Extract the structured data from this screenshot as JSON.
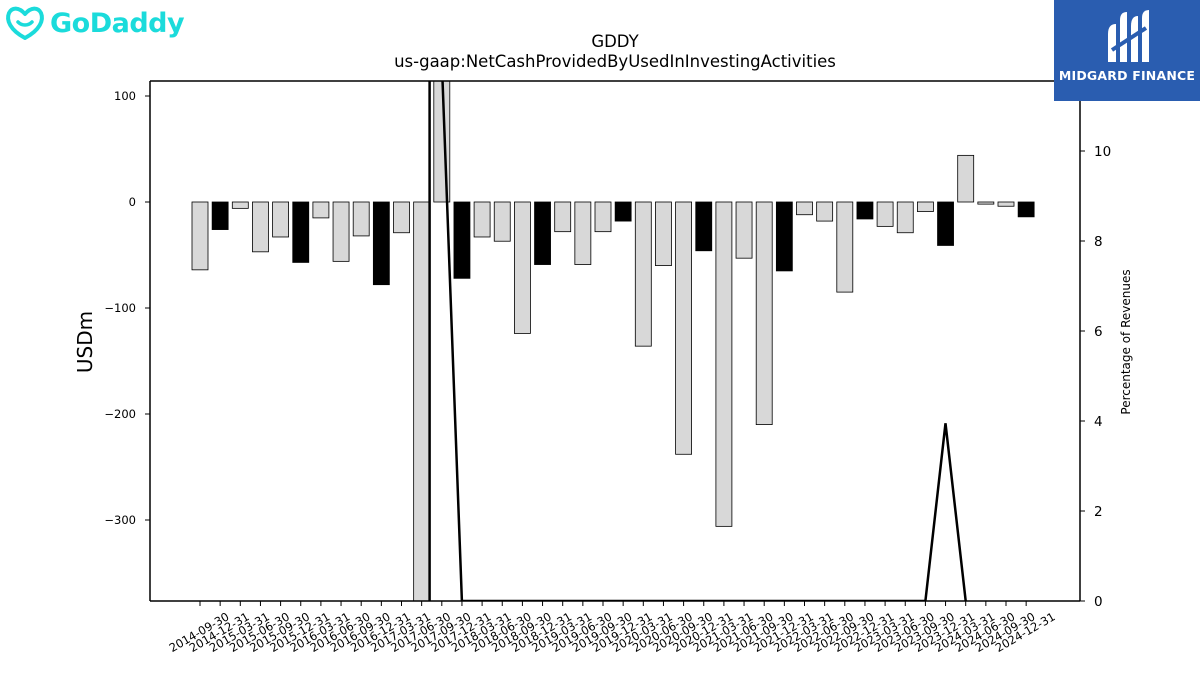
{
  "branding": {
    "left_logo_text": "GoDaddy",
    "left_logo_color": "#1bdbdb",
    "right_logo_text": "MIDGARD FINANCE",
    "right_logo_bg": "#2a5db0"
  },
  "chart_data": {
    "type": "bar",
    "title": "GDDY",
    "subtitle": "us-gaap:NetCashProvidedByUsedInInvestingActivities",
    "ylabel": "USDm",
    "y2label": "Percentage of Revenues",
    "ylim": [
      -375,
      113
    ],
    "y2lim": [
      0,
      11.5
    ],
    "yticks": [
      100,
      0,
      -100,
      -200,
      -300
    ],
    "yticklabels": [
      "100",
      "0",
      "−100",
      "−200",
      "−300"
    ],
    "y2ticks": [
      0,
      2,
      4,
      6,
      8,
      10
    ],
    "categories": [
      "2014-09-30",
      "2014-12-31",
      "2015-03-31",
      "2015-06-30",
      "2015-09-30",
      "2015-12-31",
      "2016-03-31",
      "2016-06-30",
      "2016-09-30",
      "2016-12-31",
      "2017-03-31",
      "2017-06-30",
      "2017-09-30",
      "2017-12-31",
      "2018-03-31",
      "2018-06-30",
      "2018-09-30",
      "2018-12-31",
      "2019-03-31",
      "2019-06-30",
      "2019-09-30",
      "2019-12-31",
      "2020-03-31",
      "2020-06-30",
      "2020-09-30",
      "2020-12-31",
      "2021-03-31",
      "2021-06-30",
      "2021-09-30",
      "2021-12-31",
      "2022-03-31",
      "2022-06-30",
      "2022-09-30",
      "2022-12-31",
      "2023-03-31",
      "2023-06-30",
      "2023-09-30",
      "2023-12-31",
      "2024-03-31",
      "2024-06-30",
      "2024-09-30",
      "2024-12-31"
    ],
    "values": [
      -64,
      -26,
      -6,
      -47,
      -33,
      -57,
      -15,
      -56,
      -32,
      -78,
      -29,
      -380,
      140,
      -72,
      -33,
      -37,
      -124,
      -59,
      -28,
      -59,
      -28,
      -18,
      -136,
      -60,
      -238,
      -46,
      -306,
      -53,
      -210,
      -65,
      -12,
      -18,
      -85,
      -16,
      -23,
      -29,
      -9,
      -41,
      44,
      -2,
      -4,
      -14
    ],
    "bar_colors": [
      "#d8d8d8",
      "#000000",
      "#d8d8d8",
      "#d8d8d8",
      "#d8d8d8",
      "#000000",
      "#d8d8d8",
      "#d8d8d8",
      "#d8d8d8",
      "#000000",
      "#d8d8d8",
      "#d8d8d8",
      "#d8d8d8",
      "#000000",
      "#d8d8d8",
      "#d8d8d8",
      "#d8d8d8",
      "#000000",
      "#d8d8d8",
      "#d8d8d8",
      "#d8d8d8",
      "#000000",
      "#d8d8d8",
      "#d8d8d8",
      "#d8d8d8",
      "#000000",
      "#d8d8d8",
      "#d8d8d8",
      "#d8d8d8",
      "#000000",
      "#d8d8d8",
      "#d8d8d8",
      "#d8d8d8",
      "#000000",
      "#d8d8d8",
      "#d8d8d8",
      "#d8d8d8",
      "#000000",
      "#d8d8d8",
      "#d8d8d8",
      "#d8d8d8",
      "#000000"
    ],
    "series": [
      {
        "axis": "right",
        "type": "line",
        "points": [
          {
            "x": "2017-06-30",
            "y": 0
          },
          {
            "x": "2017-06-30",
            "y": 12
          },
          {
            "x": "2017-09-30",
            "y": 12
          },
          {
            "x": "2017-12-31",
            "y": 0
          },
          {
            "x": "2023-09-30",
            "y": 0
          },
          {
            "x": "2023-12-31",
            "y": 3.95
          },
          {
            "x": "2024-03-31",
            "y": 0
          }
        ]
      }
    ],
    "grid": false
  }
}
